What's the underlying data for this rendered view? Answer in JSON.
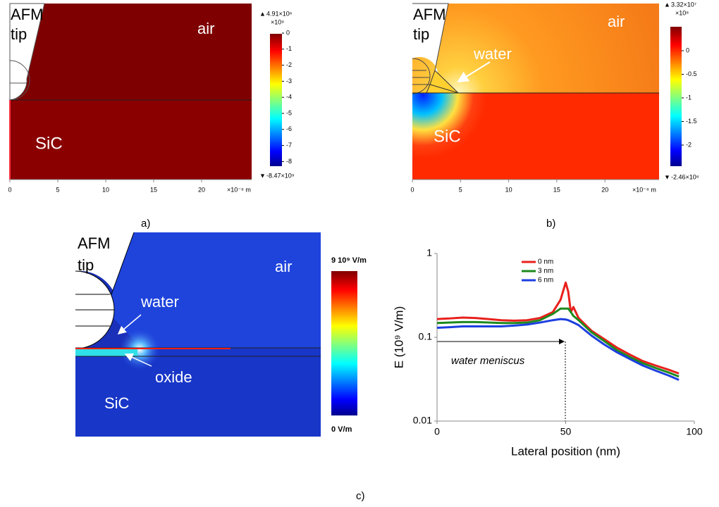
{
  "panel_a": {
    "labels": {
      "afm": "AFM",
      "tip": "tip",
      "air": "air",
      "sic": "SiC"
    },
    "colorbar": {
      "max": "4.91×10⁶",
      "scale": "×10⁹",
      "ticks": [
        "0",
        "-1",
        "-2",
        "-3",
        "-4",
        "-5",
        "-6",
        "-7",
        "-8"
      ],
      "min": "-8.47×10⁹"
    },
    "x_ticks": [
      "0",
      "5",
      "10",
      "15",
      "20"
    ],
    "x_unit": "×10⁻⁸ m",
    "caption": "a)"
  },
  "panel_b": {
    "labels": {
      "afm": "AFM",
      "tip": "tip",
      "air": "air",
      "water": "water",
      "sic": "SiC"
    },
    "colorbar": {
      "max": "3.32×10⁷",
      "scale": "×10⁸",
      "ticks": [
        "0",
        "-0.5",
        "-1",
        "-1.5",
        "-2"
      ],
      "min": "-2.46×10⁸"
    },
    "x_ticks": [
      "0",
      "5",
      "10",
      "15",
      "20"
    ],
    "x_unit": "×10⁻⁸ m",
    "caption": "b)"
  },
  "panel_c": {
    "labels": {
      "afm": "AFM",
      "tip": "tip",
      "air": "air",
      "water": "water",
      "oxide": "oxide",
      "sic": "SiC"
    },
    "colorbar": {
      "max": "9 10⁹ V/m",
      "min": "0 V/m"
    },
    "caption": "c)"
  },
  "chart_data": {
    "type": "line",
    "x_label": "Lateral position (nm)",
    "y_label": "E (10⁹ V/m)",
    "annotation": "water meniscus",
    "x": [
      0,
      5,
      10,
      15,
      20,
      25,
      30,
      35,
      40,
      45,
      48,
      50,
      51,
      52,
      53,
      55,
      60,
      65,
      70,
      75,
      80,
      85,
      90,
      94
    ],
    "series": [
      {
        "name": "0 nm",
        "color": "#e8201c",
        "values": [
          0.165,
          0.168,
          0.172,
          0.17,
          0.165,
          0.16,
          0.158,
          0.16,
          0.17,
          0.2,
          0.28,
          0.45,
          0.35,
          0.2,
          0.23,
          0.17,
          0.12,
          0.095,
          0.075,
          0.062,
          0.052,
          0.046,
          0.041,
          0.037
        ]
      },
      {
        "name": "3 nm",
        "color": "#1e8a1e",
        "values": [
          0.148,
          0.15,
          0.152,
          0.152,
          0.15,
          0.148,
          0.148,
          0.15,
          0.16,
          0.19,
          0.22,
          0.22,
          0.22,
          0.2,
          0.18,
          0.16,
          0.115,
          0.09,
          0.07,
          0.058,
          0.049,
          0.043,
          0.038,
          0.034
        ]
      },
      {
        "name": "6 nm",
        "color": "#1c3fe0",
        "values": [
          0.13,
          0.132,
          0.135,
          0.135,
          0.135,
          0.135,
          0.138,
          0.142,
          0.15,
          0.16,
          0.165,
          0.163,
          0.16,
          0.155,
          0.15,
          0.14,
          0.105,
          0.082,
          0.066,
          0.055,
          0.046,
          0.04,
          0.035,
          0.031
        ]
      }
    ],
    "xlim": [
      0,
      100
    ],
    "xticks": [
      0,
      50,
      100
    ],
    "ylim": [
      0.01,
      1
    ],
    "yticks": [
      0.01,
      0.1,
      1
    ],
    "log_y": true,
    "legend": "top-right"
  }
}
